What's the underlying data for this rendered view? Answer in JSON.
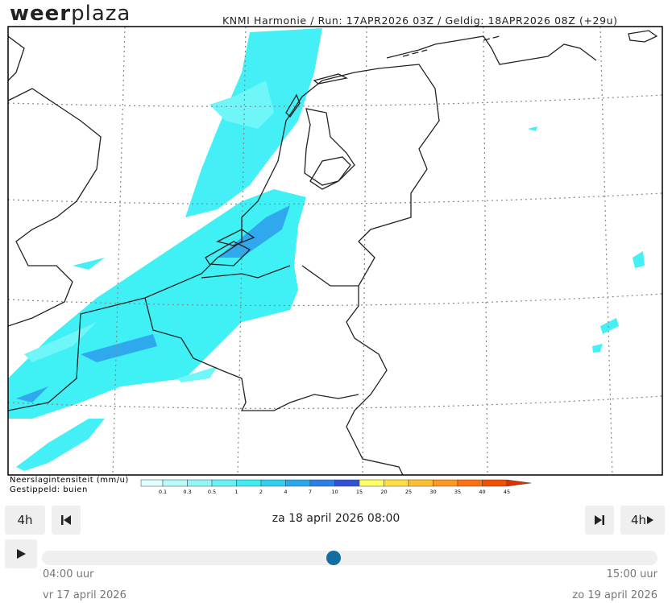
{
  "header": {
    "logo_bold": "weer",
    "logo_light": "plaza",
    "model_info": "KNMI Harmonie / Run: 17APR2026 03Z / Geldig: 18APR2026 08Z (+29u)"
  },
  "legend": {
    "title": "Neerslagintensiteit (mm/u)",
    "subtitle": "Gestippeld: buien",
    "labels": [
      "0.1",
      "0.3",
      "0.5",
      "1",
      "2",
      "4",
      "7",
      "10",
      "15",
      "20",
      "25",
      "30",
      "35",
      "40",
      "45"
    ],
    "colors": [
      "#e0ffff",
      "#b8fbfb",
      "#8ff7f7",
      "#66f2f4",
      "#3fecf0",
      "#2ed0f0",
      "#2aa8ec",
      "#2a7fe8",
      "#3050d8",
      "#ffff60",
      "#ffe040",
      "#ffc030",
      "#ff9820",
      "#ff7010",
      "#f05000",
      "#e03000"
    ]
  },
  "controls": {
    "step_back": "4h",
    "step_forward": "4h",
    "current_time": "za 18 april 2026 08:00",
    "start_time": "04:00 uur",
    "end_time": "15:00 uur",
    "start_date": "vr 17 april 2026",
    "end_date": "zo 19 april 2026"
  }
}
